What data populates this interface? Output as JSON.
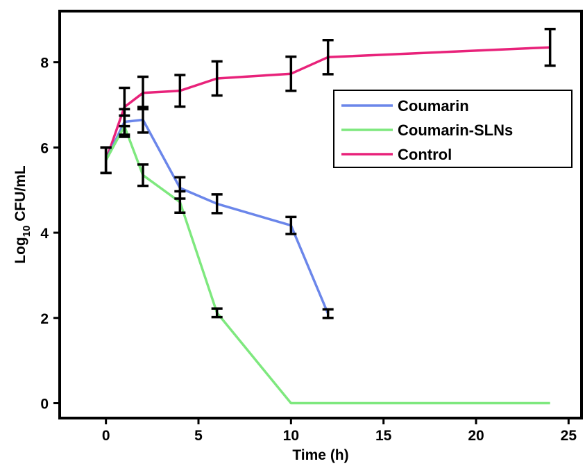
{
  "chart_data": {
    "type": "line",
    "xlabel": "Time (h)",
    "ylabel": {
      "prefix": "Log",
      "subscript": "10",
      "suffix": " CFU/mL"
    },
    "xlim": [
      -2.5,
      25.7
    ],
    "ylim": [
      -0.35,
      9.2
    ],
    "xticks": [
      0,
      5,
      10,
      15,
      20,
      25
    ],
    "yticks": [
      0,
      2,
      4,
      6,
      8
    ],
    "grid": false,
    "legend_position": "top-right",
    "series": [
      {
        "name": "Coumarin",
        "color": "#6b86ea",
        "x": [
          0,
          1,
          2,
          4,
          6,
          10,
          12
        ],
        "y": [
          5.7,
          6.6,
          6.65,
          5.05,
          4.68,
          4.17,
          2.1
        ],
        "err": [
          0.3,
          0.3,
          0.3,
          0.25,
          0.22,
          0.2,
          0.1
        ]
      },
      {
        "name": "Coumarin-SLNs",
        "color": "#7ee87e",
        "x": [
          0,
          1,
          2,
          4,
          6,
          10,
          24
        ],
        "y": [
          5.7,
          6.5,
          5.35,
          4.72,
          2.12,
          0.0,
          0.0
        ],
        "err": [
          0.3,
          0.25,
          0.25,
          0.25,
          0.1,
          0,
          0
        ]
      },
      {
        "name": "Control",
        "color": "#e8227a",
        "x": [
          0,
          1,
          2,
          4,
          6,
          10,
          12,
          24
        ],
        "y": [
          5.7,
          6.95,
          7.28,
          7.33,
          7.62,
          7.73,
          8.12,
          8.35
        ],
        "err": [
          0.3,
          0.45,
          0.38,
          0.37,
          0.4,
          0.4,
          0.4,
          0.43
        ]
      }
    ]
  }
}
